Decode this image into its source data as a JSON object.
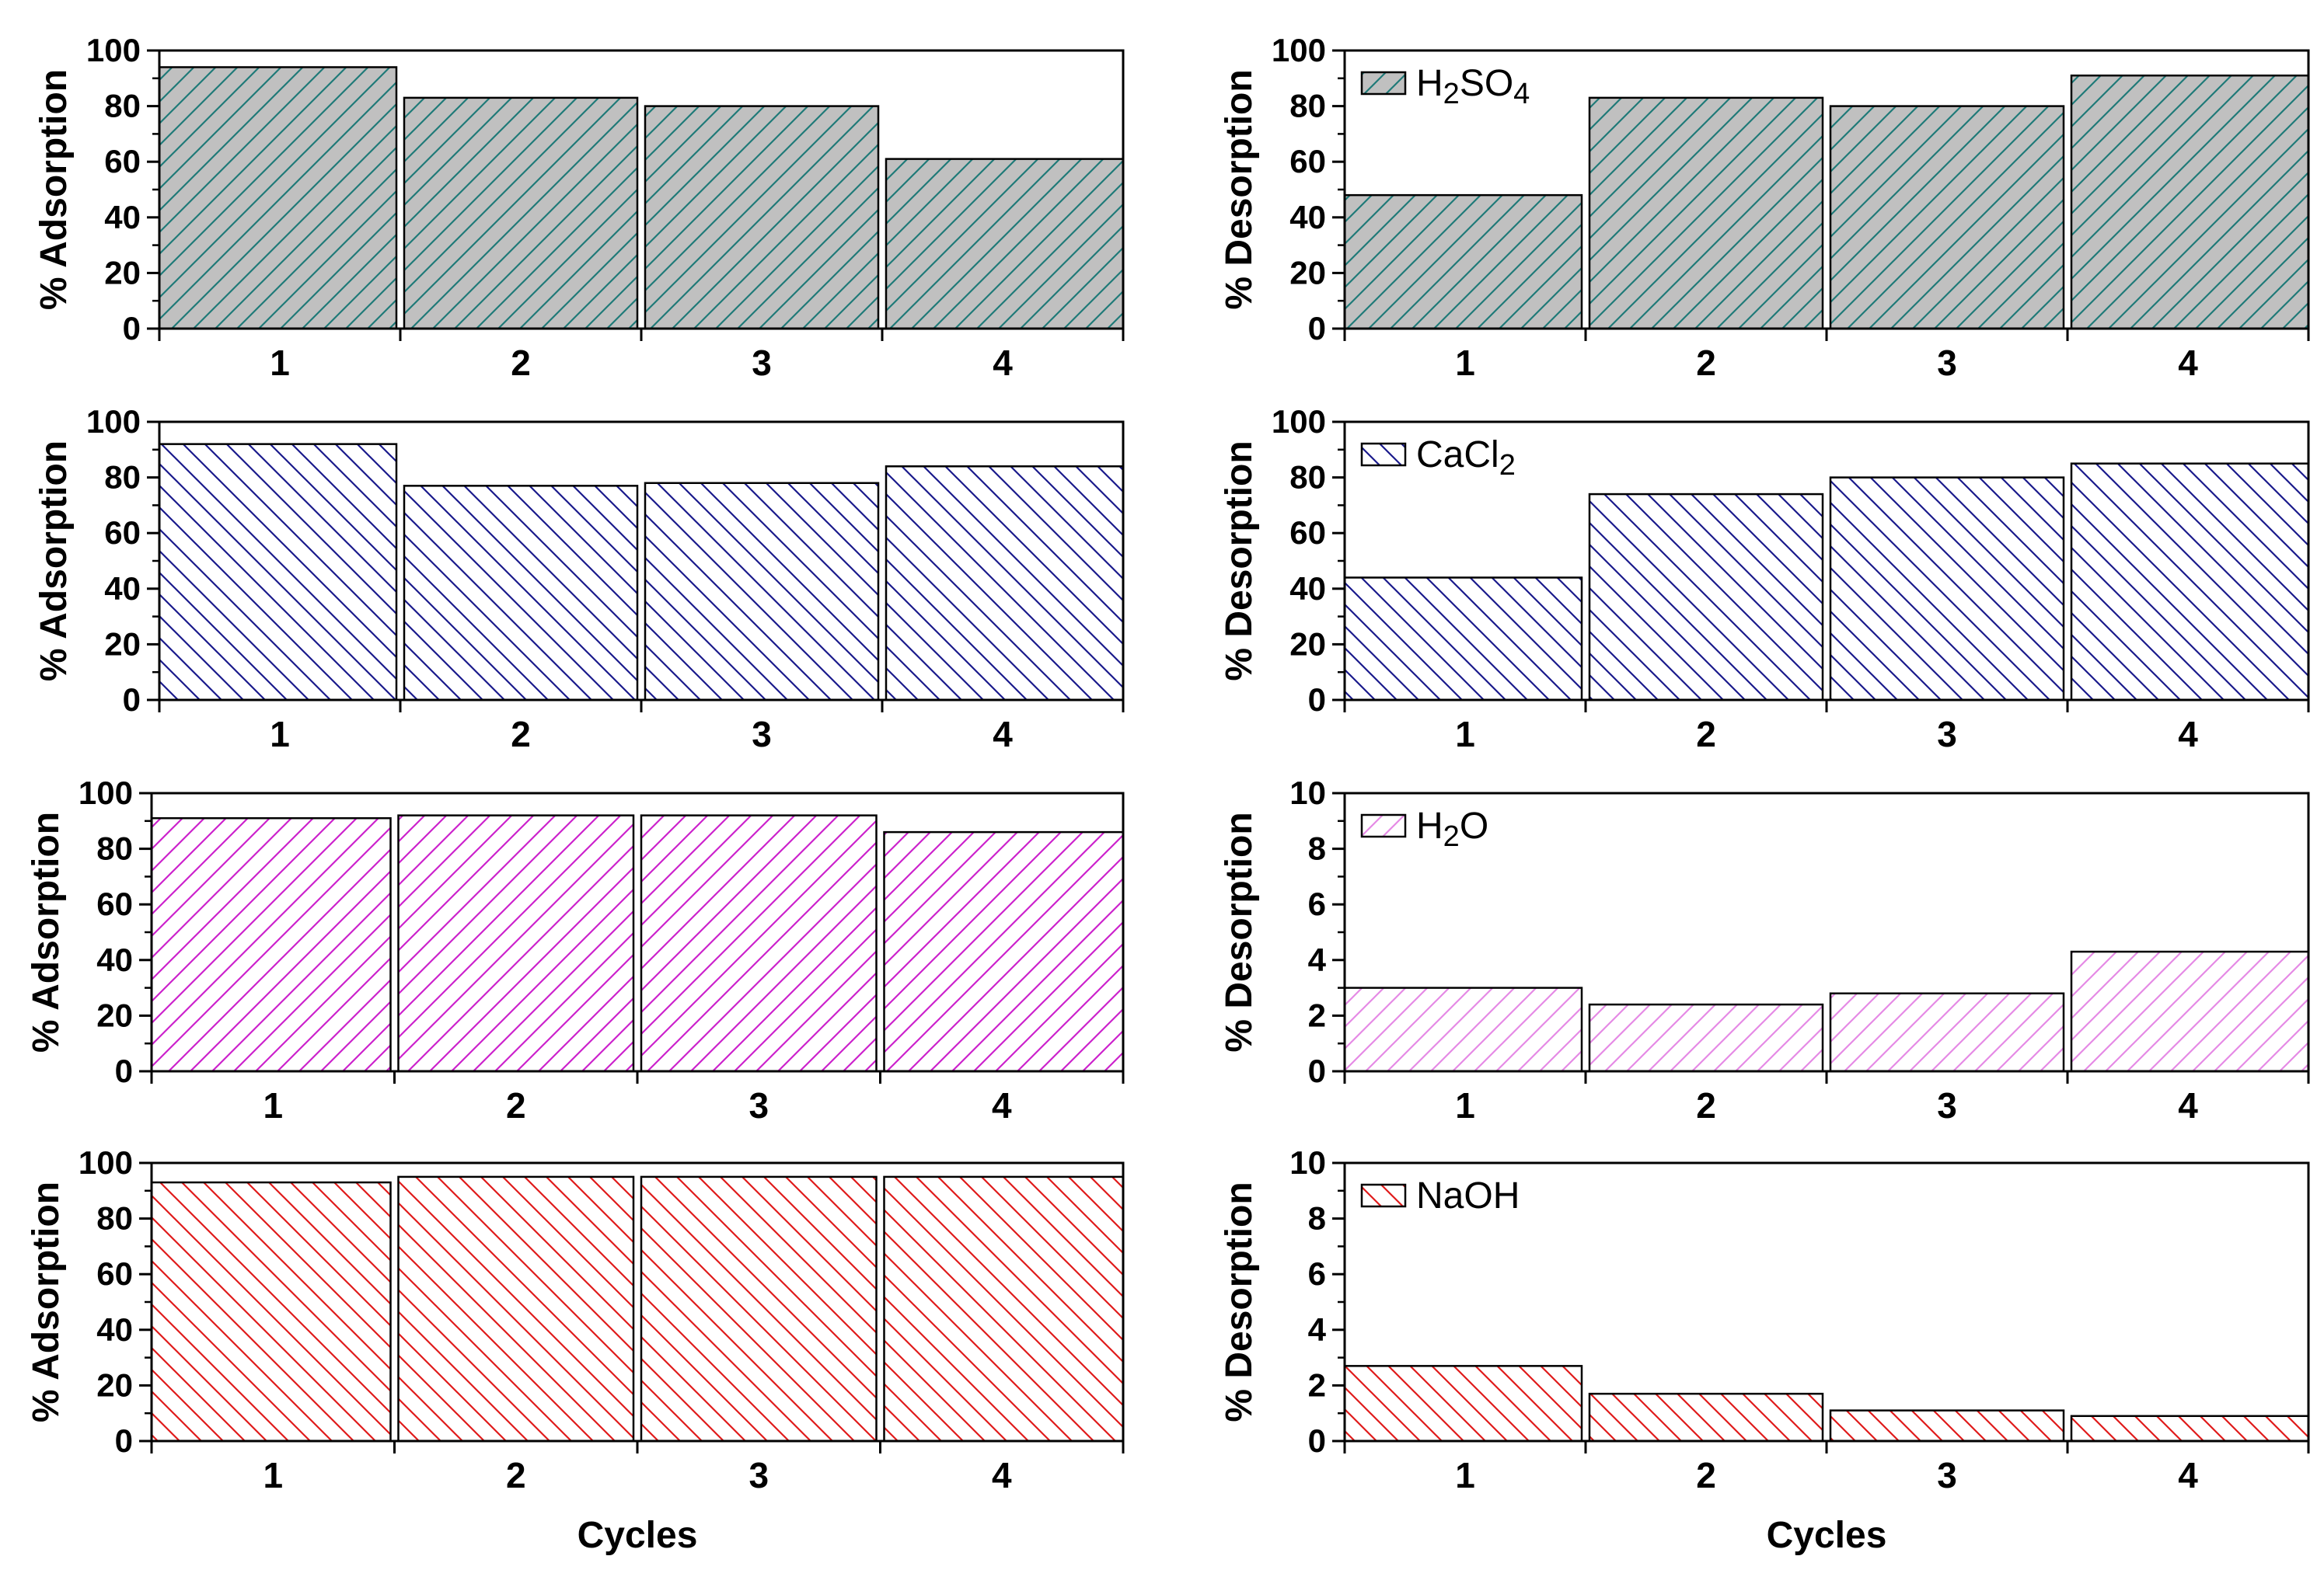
{
  "chart_data": [
    {
      "type": "bar",
      "id": "ads-h2so4",
      "categories": [
        "1",
        "2",
        "3",
        "4"
      ],
      "values": [
        94,
        83,
        80,
        61
      ],
      "ylabel": "% Adsorption",
      "xlabel": "",
      "ylim": [
        0,
        100
      ],
      "yticks": [
        "0",
        "20",
        "40",
        "60",
        "80",
        "100"
      ],
      "fill": "#c0c0c0",
      "hatch_color": "#1f7a78",
      "hatch_dir": "up"
    },
    {
      "type": "bar",
      "id": "des-h2so4",
      "categories": [
        "1",
        "2",
        "3",
        "4"
      ],
      "values": [
        48,
        83,
        80,
        91
      ],
      "ylabel": "% Desorption",
      "xlabel": "",
      "ylim": [
        0,
        100
      ],
      "yticks": [
        "0",
        "20",
        "40",
        "60",
        "80",
        "100"
      ],
      "fill": "#c0c0c0",
      "hatch_color": "#1f7a78",
      "hatch_dir": "up",
      "legend": {
        "main": "H",
        "sub1": "2",
        "mid": "SO",
        "sub2": "4"
      }
    },
    {
      "type": "bar",
      "id": "ads-cacl2",
      "categories": [
        "1",
        "2",
        "3",
        "4"
      ],
      "values": [
        92,
        77,
        78,
        84
      ],
      "ylabel": "% Adsorption",
      "xlabel": "",
      "ylim": [
        0,
        100
      ],
      "yticks": [
        "0",
        "20",
        "40",
        "60",
        "80",
        "100"
      ],
      "fill": "#ffffff",
      "hatch_color": "#1a1a8c",
      "hatch_dir": "down"
    },
    {
      "type": "bar",
      "id": "des-cacl2",
      "categories": [
        "1",
        "2",
        "3",
        "4"
      ],
      "values": [
        44,
        74,
        80,
        85
      ],
      "ylabel": "% Desorption",
      "xlabel": "",
      "ylim": [
        0,
        100
      ],
      "yticks": [
        "0",
        "20",
        "40",
        "60",
        "80",
        "100"
      ],
      "fill": "#ffffff",
      "hatch_color": "#1a1a8c",
      "hatch_dir": "down",
      "legend": {
        "main": "CaCl",
        "sub1": "2",
        "mid": "",
        "sub2": ""
      }
    },
    {
      "type": "bar",
      "id": "ads-h2o",
      "categories": [
        "1",
        "2",
        "3",
        "4"
      ],
      "values": [
        91,
        92,
        92,
        86
      ],
      "ylabel": "% Adsorption",
      "xlabel": "",
      "ylim": [
        0,
        100
      ],
      "yticks": [
        "0",
        "20",
        "40",
        "60",
        "80",
        "100"
      ],
      "fill": "#ffffff",
      "hatch_color": "#cc22cc",
      "hatch_dir": "up"
    },
    {
      "type": "bar",
      "id": "des-h2o",
      "categories": [
        "1",
        "2",
        "3",
        "4"
      ],
      "values": [
        3.0,
        2.4,
        2.8,
        4.3
      ],
      "ylabel": "% Desorption",
      "xlabel": "",
      "ylim": [
        0,
        10
      ],
      "yticks": [
        "0",
        "2",
        "4",
        "6",
        "8",
        "10"
      ],
      "fill": "#ffffff",
      "hatch_color": "#e58ae5",
      "hatch_dir": "up",
      "legend": {
        "main": "H",
        "sub1": "2",
        "mid": "O",
        "sub2": ""
      }
    },
    {
      "type": "bar",
      "id": "ads-naoh",
      "categories": [
        "1",
        "2",
        "3",
        "4"
      ],
      "values": [
        93,
        95,
        95,
        95
      ],
      "ylabel": "% Adsorption",
      "xlabel": "Cycles",
      "ylim": [
        0,
        100
      ],
      "yticks": [
        "0",
        "20",
        "40",
        "60",
        "80",
        "100"
      ],
      "fill": "#ffffff",
      "hatch_color": "#e01b1b",
      "hatch_dir": "down"
    },
    {
      "type": "bar",
      "id": "des-naoh",
      "categories": [
        "1",
        "2",
        "3",
        "4"
      ],
      "values": [
        2.7,
        1.7,
        1.1,
        0.9
      ],
      "ylabel": "% Desorption",
      "xlabel": "Cycles",
      "ylim": [
        0,
        10
      ],
      "yticks": [
        "0",
        "2",
        "4",
        "6",
        "8",
        "10"
      ],
      "fill": "#ffffff",
      "hatch_color": "#e01b1b",
      "hatch_dir": "down",
      "legend": {
        "main": "NaOH",
        "sub1": "",
        "mid": "",
        "sub2": ""
      }
    }
  ]
}
